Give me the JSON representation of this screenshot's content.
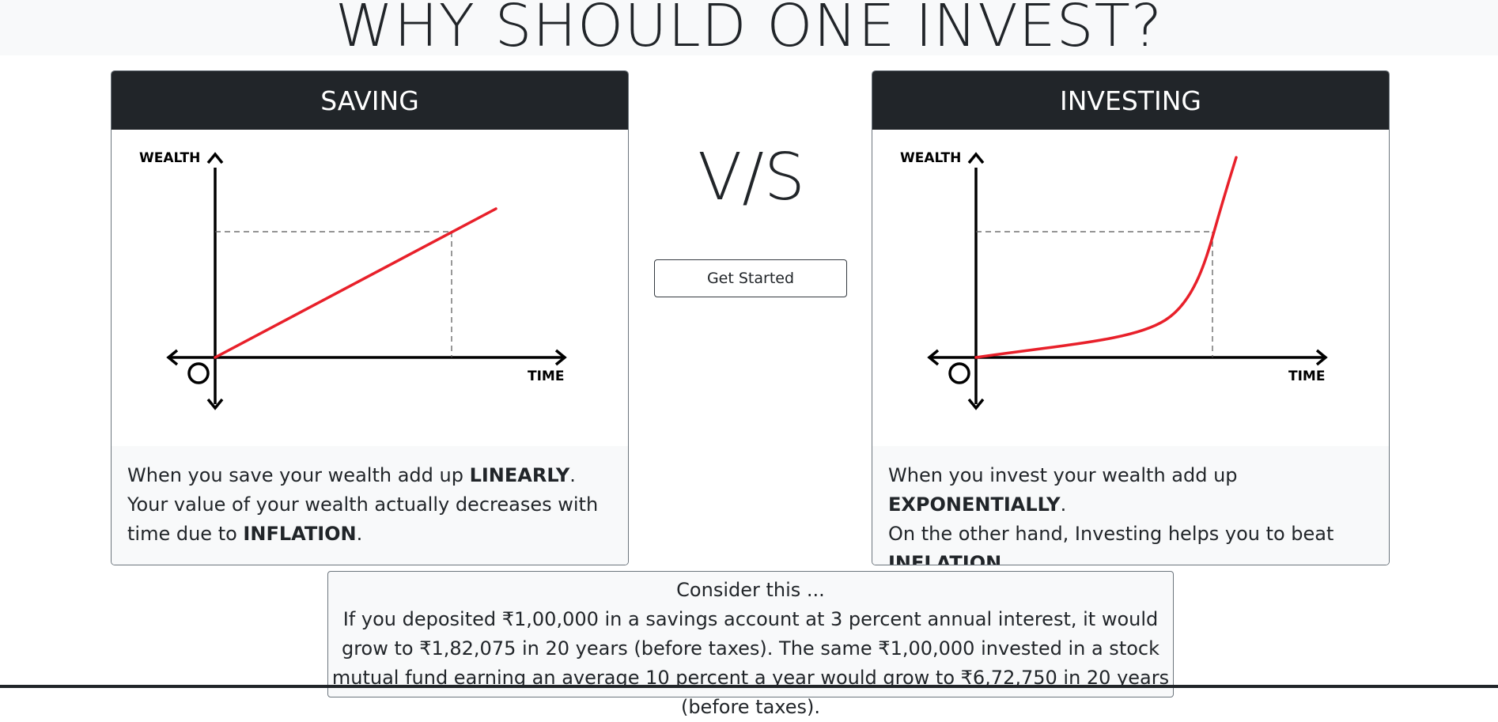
{
  "page": {
    "title": "WHY SHOULD ONE INVEST?"
  },
  "saving": {
    "header": "SAVING",
    "axis_y_label": "WEALTH",
    "axis_x_label": "TIME",
    "origin_label": "O",
    "body": {
      "line1_pre": "When you save your wealth add up ",
      "line1_bold": "LINEARLY",
      "line1_post": ".",
      "line2_pre": "Your value of your wealth actually decreases with time due to ",
      "line2_bold": "INFLATION",
      "line2_post": "."
    }
  },
  "investing": {
    "header": "INVESTING",
    "axis_y_label": "WEALTH",
    "axis_x_label": "TIME",
    "origin_label": "O",
    "body": {
      "line1_pre": "When you invest your wealth add up ",
      "line1_bold": "EXPONENTIALLY",
      "line1_post": ".",
      "line2_pre": "On the other hand, Investing helps you to beat ",
      "line2_bold": "INFLATION",
      "line2_post": "."
    }
  },
  "versus": {
    "text": "V/S",
    "button_label": "Get Started"
  },
  "consider": {
    "heading": "Consider this ...",
    "text": "If you deposited ₹1,00,000 in a savings account at 3 percent annual interest, it would grow to ₹1,82,075 in 20 years (before taxes). The same ₹1,00,000 invested in a stock mutual fund earning an average 10 percent a year would grow to ₹6,72,750 in 20 years (before taxes)."
  },
  "colors": {
    "dark": "#212529",
    "curve": "#e8202a",
    "light_bg": "#f8f9fa"
  },
  "icons": {
    "arrows": "axis-arrow-icon"
  }
}
